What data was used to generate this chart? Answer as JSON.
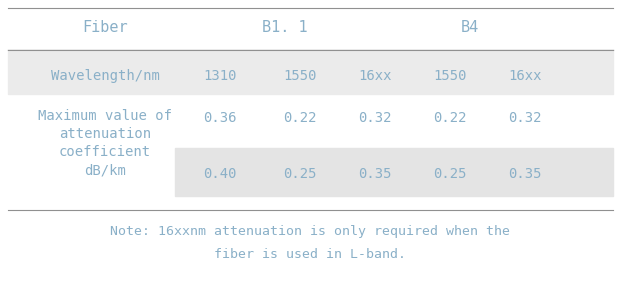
{
  "bg_color": "#ffffff",
  "text_color": "#8ab0c8",
  "header_line_color": "#909090",
  "wavelength_bg": "#ebebeb",
  "row2_bg": "#e4e4e4",
  "title_text": "Fiber",
  "b11_text": "B1. 1",
  "b4_text": "B4",
  "wavelength_label": "Wavelength/nm",
  "row_label_line1": "Maximum value of",
  "row_label_line2": "attenuation",
  "row_label_line3": "coefficient",
  "row_label_line4": "dB/km",
  "wavelengths": [
    "1310",
    "1550",
    "16xx",
    "1550",
    "16xx"
  ],
  "row1_values": [
    "0.36",
    "0.22",
    "0.32",
    "0.22",
    "0.32"
  ],
  "row2_values": [
    "0.40",
    "0.25",
    "0.35",
    "0.25",
    "0.35"
  ],
  "note_line1": "Note: 16xxnm attenuation is only required when the",
  "note_line2": "fiber is used in L-band.",
  "font_size_header": 11,
  "font_size_data": 10,
  "font_size_note": 9.5
}
